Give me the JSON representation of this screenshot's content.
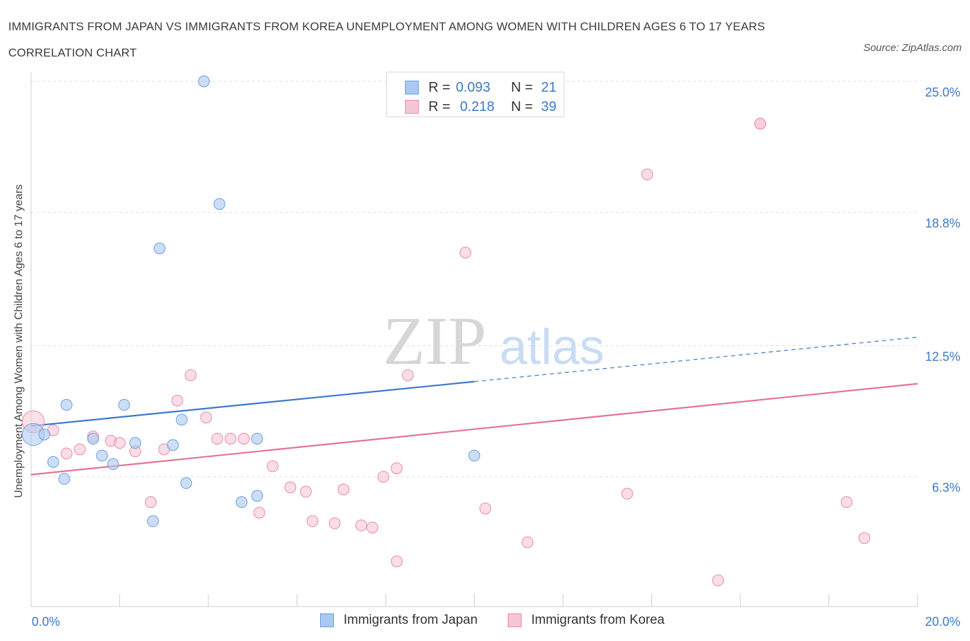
{
  "header": {
    "title": "IMMIGRANTS FROM JAPAN VS IMMIGRANTS FROM KOREA UNEMPLOYMENT AMONG WOMEN WITH CHILDREN AGES 6 TO 17 YEARS CORRELATION CHART",
    "source": "Source: ZipAtlas.com"
  },
  "watermark": {
    "zip": "ZIP",
    "atlas": "atlas"
  },
  "legend": {
    "rows": [
      {
        "r_label": "R =",
        "r_value": "0.093",
        "n_label": "N =",
        "n_value": "21",
        "color": "#aac8f0",
        "border": "#6a9ee0"
      },
      {
        "r_label": "R =",
        "r_value": "0.218",
        "n_label": "N =",
        "n_value": "39",
        "color": "#f7c6d6",
        "border": "#e88aa8"
      }
    ]
  },
  "colors": {
    "japan_fill": "#aac8f0",
    "japan_stroke": "#6a9ee0",
    "japan_line": "#3a78c9",
    "korea_fill": "#f7c6d6",
    "korea_stroke": "#e88aa8",
    "korea_line": "#e37299",
    "axis_text": "#3a78c9",
    "grid": "#dddddd"
  },
  "chart_data": {
    "type": "scatter",
    "title": "IMMIGRANTS FROM JAPAN VS IMMIGRANTS FROM KOREA UNEMPLOYMENT AMONG WOMEN WITH CHILDREN AGES 6 TO 17 YEARS CORRELATION CHART",
    "xlabel": "",
    "ylabel": "Unemployment Among Women with Children Ages 6 to 17 years",
    "xlim": [
      0,
      20
    ],
    "ylim": [
      0,
      25
    ],
    "x_tick_labels": [
      "0.0%",
      "20.0%"
    ],
    "y_ticks": [
      6.3,
      12.5,
      18.8,
      25.0
    ],
    "y_tick_labels": [
      "6.3%",
      "12.5%",
      "18.8%",
      "25.0%"
    ],
    "grid": true,
    "legend_position": "bottom-center",
    "series": [
      {
        "name": "Immigrants from Japan",
        "R": 0.093,
        "N": 21,
        "points": [
          {
            "x": 0.05,
            "y": 8.3,
            "big": true
          },
          {
            "x": 0.3,
            "y": 8.3
          },
          {
            "x": 0.5,
            "y": 7.0
          },
          {
            "x": 0.75,
            "y": 6.2
          },
          {
            "x": 0.8,
            "y": 9.7
          },
          {
            "x": 1.4,
            "y": 8.1
          },
          {
            "x": 1.6,
            "y": 7.3
          },
          {
            "x": 1.85,
            "y": 6.9
          },
          {
            "x": 2.1,
            "y": 9.7
          },
          {
            "x": 2.35,
            "y": 7.9
          },
          {
            "x": 2.75,
            "y": 4.2
          },
          {
            "x": 2.9,
            "y": 17.1
          },
          {
            "x": 3.2,
            "y": 7.8
          },
          {
            "x": 3.4,
            "y": 9.0
          },
          {
            "x": 3.5,
            "y": 6.0
          },
          {
            "x": 3.9,
            "y": 25.0
          },
          {
            "x": 4.25,
            "y": 19.2
          },
          {
            "x": 4.75,
            "y": 5.1
          },
          {
            "x": 5.1,
            "y": 5.4
          },
          {
            "x": 5.1,
            "y": 8.1
          },
          {
            "x": 10.0,
            "y": 7.3
          }
        ],
        "trend": {
          "x1": 0,
          "y1": 8.7,
          "x2": 10.0,
          "y2": 10.8,
          "dashed_to": {
            "x": 20,
            "y": 12.9
          }
        }
      },
      {
        "name": "Immigrants from Korea",
        "R": 0.218,
        "N": 39,
        "points": [
          {
            "x": 0.05,
            "y": 8.9,
            "big": true
          },
          {
            "x": 0.5,
            "y": 8.5
          },
          {
            "x": 0.8,
            "y": 7.4
          },
          {
            "x": 1.1,
            "y": 7.6
          },
          {
            "x": 1.4,
            "y": 8.2
          },
          {
            "x": 1.8,
            "y": 8.0
          },
          {
            "x": 2.0,
            "y": 7.9
          },
          {
            "x": 2.35,
            "y": 7.5
          },
          {
            "x": 2.7,
            "y": 5.1
          },
          {
            "x": 3.0,
            "y": 7.6
          },
          {
            "x": 3.3,
            "y": 9.9
          },
          {
            "x": 3.6,
            "y": 11.1
          },
          {
            "x": 3.95,
            "y": 9.1
          },
          {
            "x": 4.2,
            "y": 8.1
          },
          {
            "x": 4.5,
            "y": 8.1
          },
          {
            "x": 4.8,
            "y": 8.1
          },
          {
            "x": 5.15,
            "y": 4.6
          },
          {
            "x": 5.45,
            "y": 6.8
          },
          {
            "x": 5.85,
            "y": 5.8
          },
          {
            "x": 6.2,
            "y": 5.6
          },
          {
            "x": 6.35,
            "y": 4.2
          },
          {
            "x": 6.85,
            "y": 4.1
          },
          {
            "x": 7.05,
            "y": 5.7
          },
          {
            "x": 7.45,
            "y": 4.0
          },
          {
            "x": 7.7,
            "y": 3.9
          },
          {
            "x": 7.95,
            "y": 6.3
          },
          {
            "x": 8.25,
            "y": 2.3
          },
          {
            "x": 8.25,
            "y": 6.7
          },
          {
            "x": 8.5,
            "y": 11.1
          },
          {
            "x": 9.8,
            "y": 16.9
          },
          {
            "x": 10.25,
            "y": 4.8
          },
          {
            "x": 11.2,
            "y": 3.2
          },
          {
            "x": 13.45,
            "y": 5.5
          },
          {
            "x": 13.9,
            "y": 20.6
          },
          {
            "x": 15.5,
            "y": 1.4
          },
          {
            "x": 16.45,
            "y": 23.0
          },
          {
            "x": 18.4,
            "y": 5.1
          },
          {
            "x": 18.8,
            "y": 3.4
          },
          {
            "x": 16.45,
            "y": 23.0
          }
        ],
        "trend": {
          "x1": 0,
          "y1": 6.4,
          "x2": 20,
          "y2": 10.7
        }
      }
    ]
  },
  "bottom_legend": {
    "japan": "Immigrants from Japan",
    "korea": "Immigrants from Korea"
  }
}
